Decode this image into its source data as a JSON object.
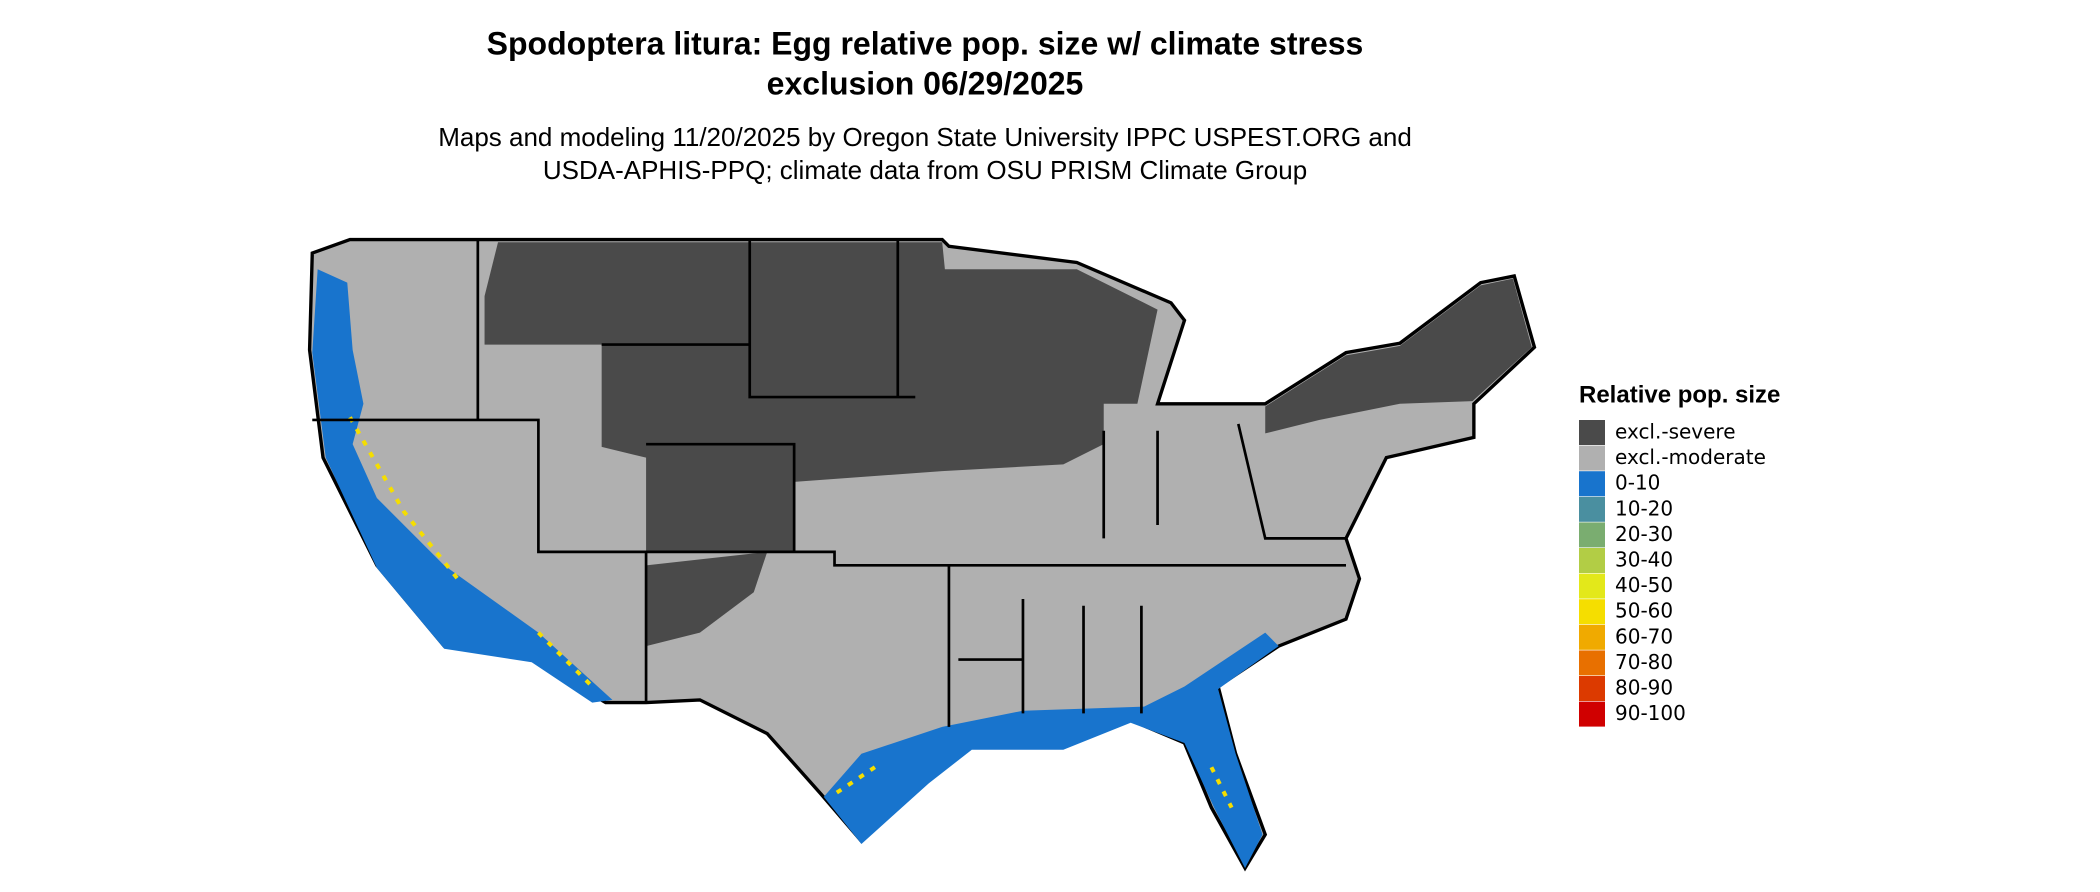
{
  "header": {
    "title_lines": [
      "Spodoptera litura: Egg relative pop. size w/ climate stress",
      "exclusion 06/29/2025"
    ],
    "subtitle_lines": [
      "Maps and modeling 11/20/2025 by Oregon State University IPPC USPEST.ORG and",
      "USDA-APHIS-PPQ; climate data from OSU PRISM Climate Group"
    ]
  },
  "legend": {
    "title": "Relative pop. size",
    "items": [
      {
        "label": "excl.-severe",
        "color": "#4a4a4a"
      },
      {
        "label": "excl.-moderate",
        "color": "#b0b0b0"
      },
      {
        "label": "0-10",
        "color": "#1874cd"
      },
      {
        "label": "10-20",
        "color": "#4a8fa0"
      },
      {
        "label": "20-30",
        "color": "#7aad70"
      },
      {
        "label": "30-40",
        "color": "#b2cd45"
      },
      {
        "label": "40-50",
        "color": "#e3e81a"
      },
      {
        "label": "50-60",
        "color": "#f5de00"
      },
      {
        "label": "60-70",
        "color": "#f0aa00"
      },
      {
        "label": "70-80",
        "color": "#e87000"
      },
      {
        "label": "80-90",
        "color": "#dc3a00"
      },
      {
        "label": "90-100",
        "color": "#d00000"
      }
    ]
  }
}
